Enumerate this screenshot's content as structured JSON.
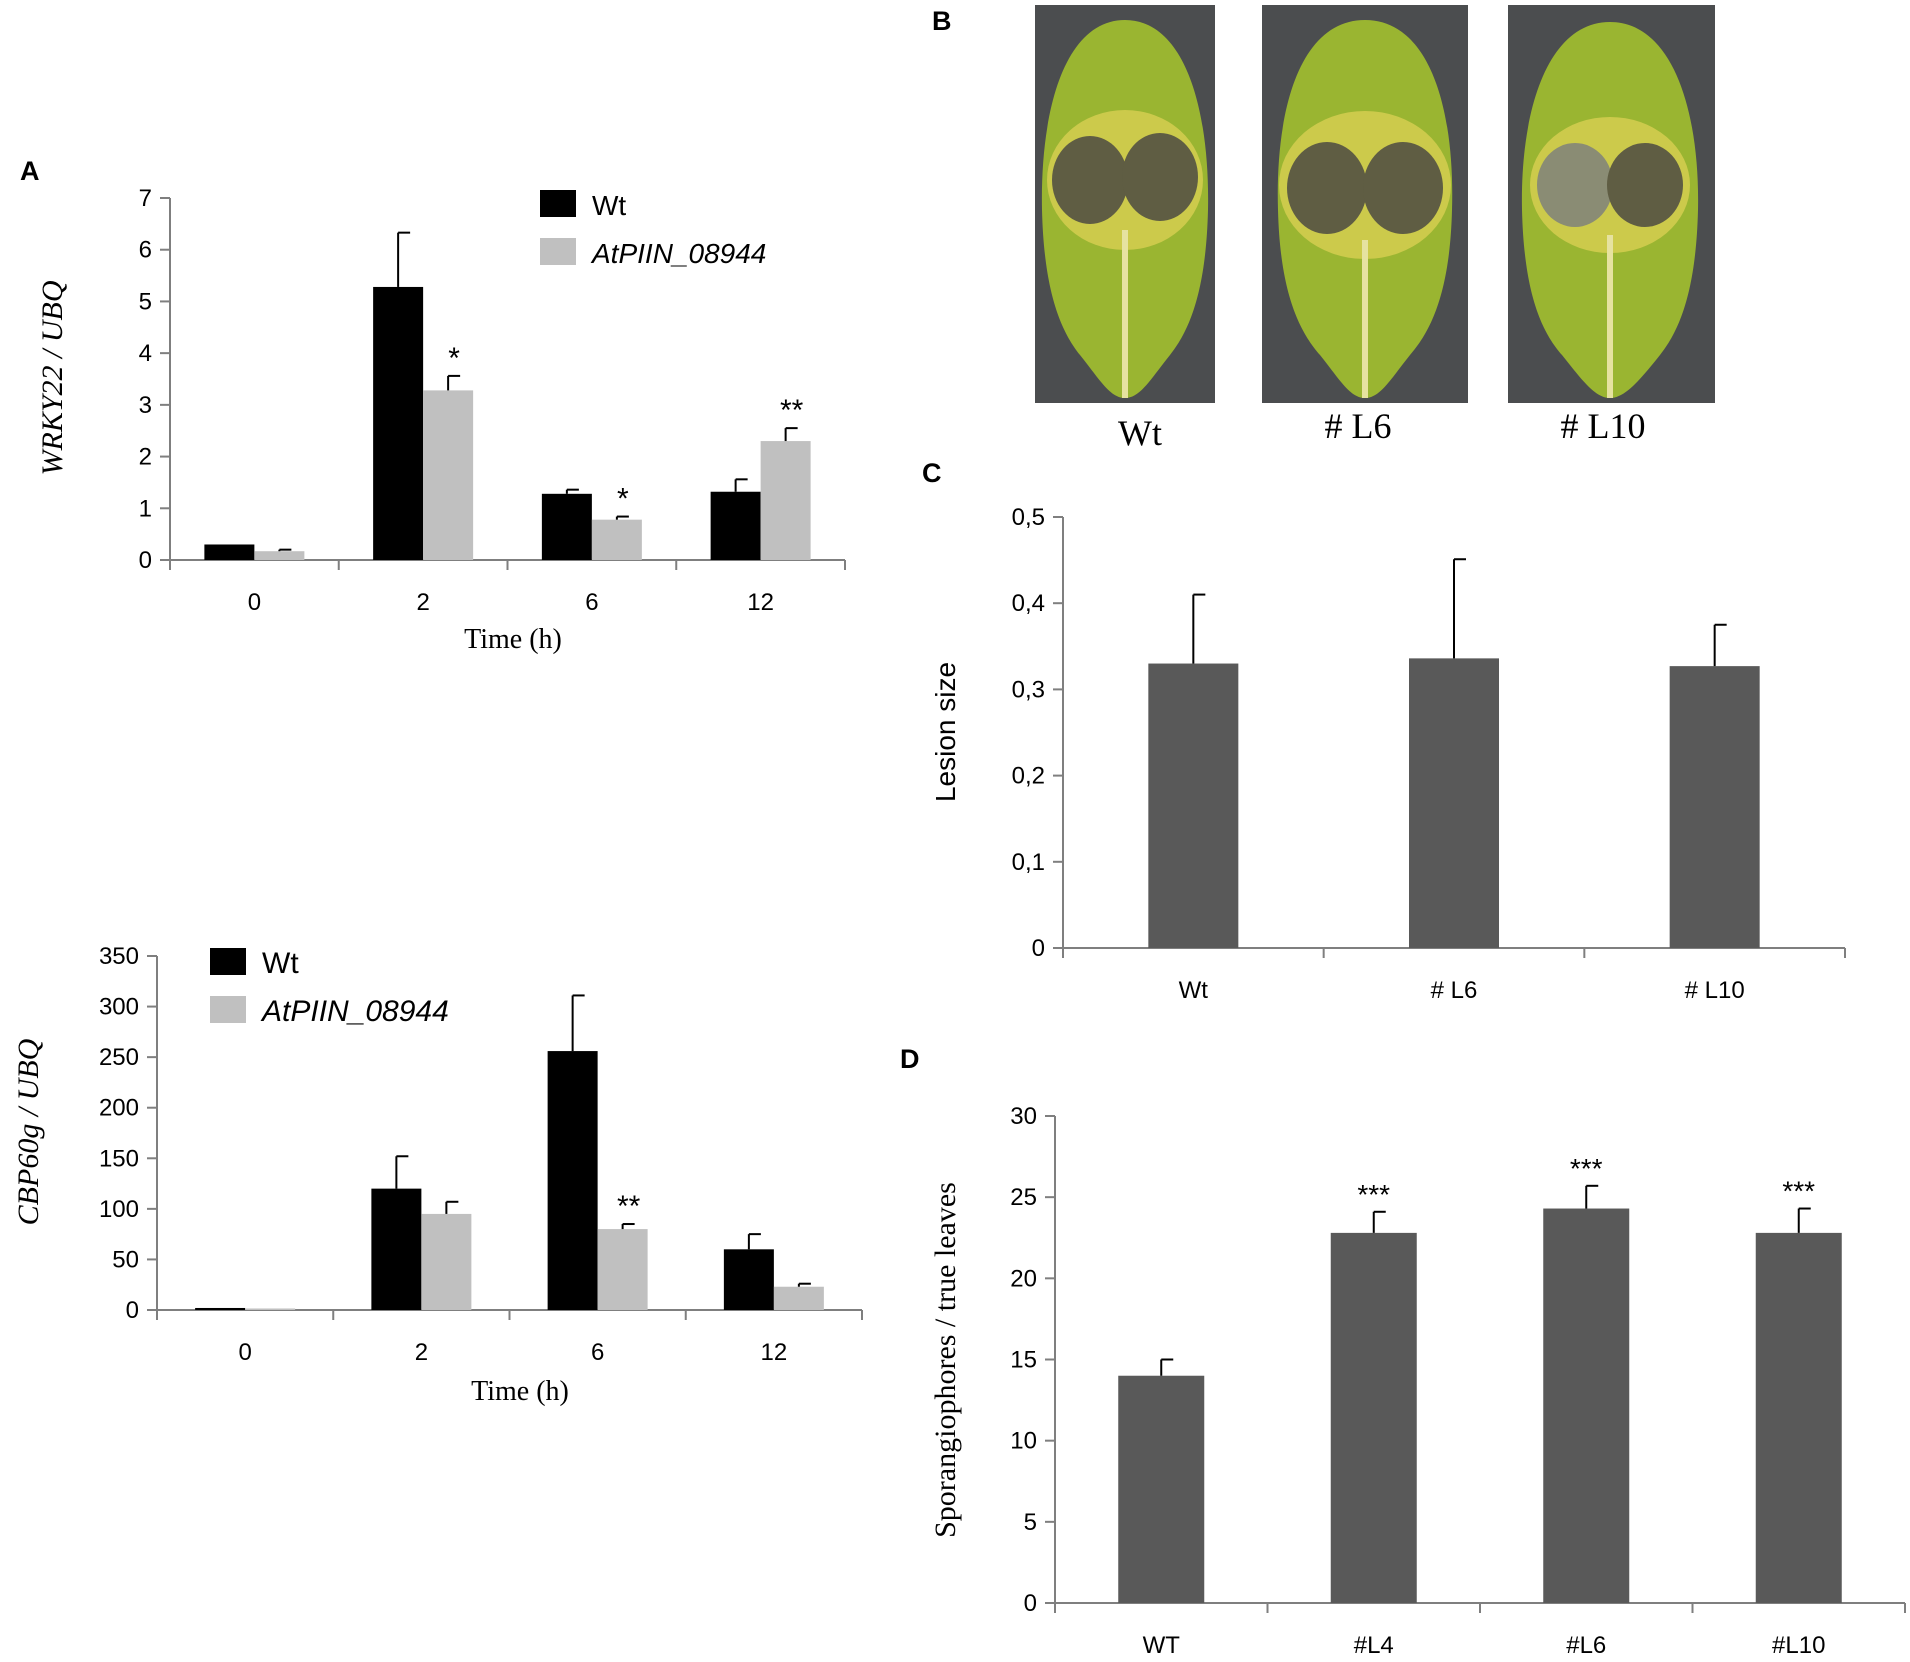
{
  "figure": {
    "panels": {
      "A": "A",
      "B": "B",
      "C": "C",
      "D": "D"
    },
    "colors": {
      "wt_black": "#000000",
      "mutant_gray": "#c0c0c0",
      "bar_dark_gray": "#595959",
      "axis": "#7f7f7f",
      "photo_bg": "#4b4d4f",
      "leaf_green": "#9ab531",
      "leaf_yellow": "#d8cf52",
      "lesion": "#5f5d43"
    }
  },
  "panel_b": {
    "labels": [
      "Wt",
      "# L6",
      "# L10"
    ],
    "icons": [
      "leaf-photo-icon",
      "leaf-photo-icon",
      "leaf-photo-icon"
    ]
  },
  "chart_data": [
    {
      "id": "A-top",
      "type": "bar",
      "title": "",
      "xlabel": "Time (h)",
      "ylabel": "WRKY22 / UBQ",
      "categories": [
        "0",
        "2",
        "6",
        "12"
      ],
      "ylim": [
        0,
        7
      ],
      "yticks": [
        "0",
        "1",
        "2",
        "3",
        "4",
        "5",
        "6",
        "7"
      ],
      "series": [
        {
          "name": "Wt",
          "values": [
            0.3,
            5.28,
            1.28,
            1.32
          ],
          "errors": [
            0.0,
            1.05,
            0.08,
            0.24
          ],
          "color": "#000000"
        },
        {
          "name": "AtPIIN_08944",
          "values": [
            0.17,
            3.28,
            0.78,
            2.3
          ],
          "errors": [
            0.03,
            0.28,
            0.06,
            0.25
          ],
          "color": "#c0c0c0"
        }
      ],
      "annotations": [
        {
          "category": "2",
          "series": 1,
          "text": "*"
        },
        {
          "category": "6",
          "series": 1,
          "text": "*"
        },
        {
          "category": "12",
          "series": 1,
          "text": "**"
        }
      ],
      "legend": "top-right"
    },
    {
      "id": "A-bottom",
      "type": "bar",
      "title": "",
      "xlabel": "Time (h)",
      "ylabel": "CBP60g / UBQ",
      "categories": [
        "0",
        "2",
        "6",
        "12"
      ],
      "ylim": [
        0,
        350
      ],
      "yticks": [
        "0",
        "50",
        "100",
        "150",
        "200",
        "250",
        "300",
        "350"
      ],
      "series": [
        {
          "name": "Wt",
          "values": [
            2,
            120,
            256,
            60
          ],
          "errors": [
            0,
            32,
            55,
            15
          ],
          "color": "#000000"
        },
        {
          "name": "AtPIIN_08944",
          "values": [
            1.5,
            95,
            80,
            23
          ],
          "errors": [
            0,
            12,
            5,
            3
          ],
          "color": "#c0c0c0"
        }
      ],
      "annotations": [
        {
          "category": "6",
          "series": 1,
          "text": "**"
        }
      ],
      "legend": "top-left"
    },
    {
      "id": "C",
      "type": "bar",
      "title": "",
      "xlabel": "",
      "ylabel": "Lesion size",
      "categories": [
        "Wt",
        "# L6",
        "# L10"
      ],
      "ylim": [
        0,
        0.5
      ],
      "yticks": [
        "0",
        "0,1",
        "0,2",
        "0,3",
        "0,4",
        "0,5"
      ],
      "series": [
        {
          "name": "Lesion size",
          "values": [
            0.33,
            0.336,
            0.327
          ],
          "errors": [
            0.08,
            0.115,
            0.048
          ],
          "color": "#595959"
        }
      ],
      "annotations": [],
      "legend": "none"
    },
    {
      "id": "D",
      "type": "bar",
      "title": "",
      "xlabel": "",
      "ylabel": "Sporangiophores / true leaves",
      "categories": [
        "WT",
        "#L4",
        "#L6",
        "#L10"
      ],
      "ylim": [
        0,
        30
      ],
      "yticks": [
        "0",
        "5",
        "10",
        "15",
        "20",
        "25",
        "30"
      ],
      "series": [
        {
          "name": "Sporangiophores",
          "values": [
            14.0,
            22.8,
            24.3,
            22.8
          ],
          "errors": [
            1.0,
            1.3,
            1.4,
            1.5
          ],
          "color": "#595959"
        }
      ],
      "annotations": [
        {
          "category": "#L4",
          "series": 0,
          "text": "***"
        },
        {
          "category": "#L6",
          "series": 0,
          "text": "***"
        },
        {
          "category": "#L10",
          "series": 0,
          "text": "***"
        }
      ],
      "legend": "none"
    }
  ]
}
